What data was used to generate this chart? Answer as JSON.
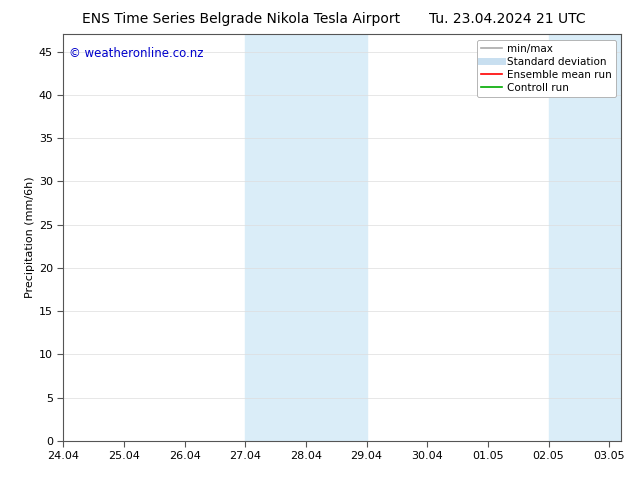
{
  "title_left": "ENS Time Series Belgrade Nikola Tesla Airport",
  "title_right": "Tu. 23.04.2024 21 UTC",
  "ylabel": "Precipitation (mm/6h)",
  "watermark": "© weatheronline.co.nz",
  "watermark_color": "#0000cc",
  "xmin": 0,
  "xmax": 9.2,
  "ymin": 0,
  "ymax": 47,
  "yticks": [
    0,
    5,
    10,
    15,
    20,
    25,
    30,
    35,
    40,
    45
  ],
  "xtick_labels": [
    "24.04",
    "25.04",
    "26.04",
    "27.04",
    "28.04",
    "29.04",
    "30.04",
    "01.05",
    "02.05",
    "03.05"
  ],
  "xtick_positions": [
    0,
    1,
    2,
    3,
    4,
    5,
    6,
    7,
    8,
    9
  ],
  "shade_bands": [
    {
      "xstart": 3.0,
      "xend": 5.0
    },
    {
      "xstart": 8.0,
      "xend": 9.2
    }
  ],
  "shade_color": "#daedf8",
  "background_color": "#ffffff",
  "legend_entries": [
    {
      "label": "min/max",
      "color": "#aaaaaa",
      "lw": 1.2,
      "style": "solid"
    },
    {
      "label": "Standard deviation",
      "color": "#c8dff0",
      "lw": 5,
      "style": "solid"
    },
    {
      "label": "Ensemble mean run",
      "color": "#ff0000",
      "lw": 1.2,
      "style": "solid"
    },
    {
      "label": "Controll run",
      "color": "#00aa00",
      "lw": 1.2,
      "style": "solid"
    }
  ],
  "title_fontsize": 10,
  "ylabel_fontsize": 8,
  "tick_fontsize": 8,
  "watermark_fontsize": 8.5,
  "legend_fontsize": 7.5
}
